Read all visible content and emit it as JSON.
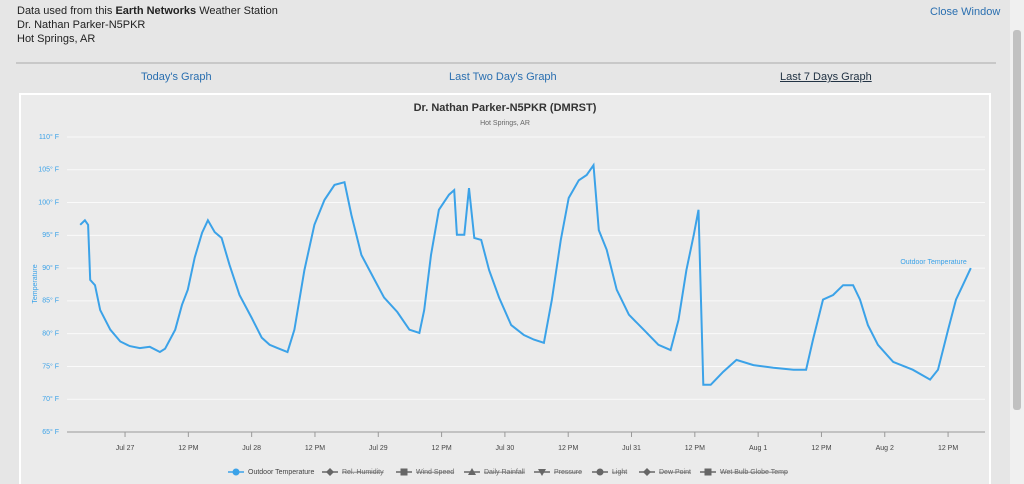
{
  "header": {
    "source_prefix": "Data used from this",
    "source_network": "Earth Networks",
    "source_suffix": "Weather Station",
    "station": "Dr. Nathan Parker-N5PKR",
    "location": "Hot Springs, AR",
    "close": "Close Window"
  },
  "tabs": [
    "Today's Graph",
    "Last Two Day's Graph",
    "Last 7 Days Graph"
  ],
  "chart_data": {
    "type": "line",
    "title": "Dr. Nathan Parker-N5PKR (DMRST)",
    "subtitle": "Hot Springs, AR",
    "y_label": "Temperature",
    "x": [
      -8.5,
      -7.6,
      -7,
      -6.6,
      -5.7,
      -4.7,
      -2.8,
      -0.9,
      0.9,
      2.8,
      4.7,
      6.6,
      7.6,
      9.5,
      10.8,
      11.9,
      13.2,
      14.6,
      15.7,
      17,
      18.3,
      19.8,
      21.7,
      24,
      25.9,
      27.4,
      28.9,
      30.8,
      32.1,
      34,
      35.9,
      37.8,
      39.7,
      41.6,
      42.9,
      44.8,
      47.3,
      49.1,
      51.6,
      53.9,
      55.8,
      56.7,
      58,
      59.5,
      61.4,
      62.4,
      62.9,
      64.3,
      65.2,
      66.2,
      67.5,
      69,
      70.9,
      73.2,
      75.6,
      77.5,
      79.4,
      80.9,
      82.6,
      84.1,
      86,
      87.5,
      88.8,
      89.8,
      91.3,
      93.2,
      95.5,
      98.3,
      101.1,
      103.4,
      104.9,
      106.4,
      107.8,
      108.7,
      109.6,
      111,
      113.4,
      115.9,
      119.1,
      122.9,
      126.7,
      129.1,
      130.4,
      132.3,
      134.2,
      136.1,
      138,
      139.3,
      140.8,
      142.7,
      145.6,
      149.3,
      152.6,
      154.1,
      156,
      157.5,
      158.8,
      160.3
    ],
    "series": [
      {
        "name": "Outdoor Temperature",
        "color": "#3ba2e8",
        "values": [
          96.6,
          97.3,
          96.6,
          88.2,
          87.4,
          83.6,
          80.6,
          78.8,
          78.1,
          77.8,
          78,
          77.2,
          77.7,
          80.6,
          84.4,
          86.7,
          91.6,
          95.4,
          97.3,
          95.5,
          94.6,
          90.5,
          85.9,
          82.4,
          79.4,
          78.3,
          77.8,
          77.2,
          80.6,
          89.7,
          96.6,
          100.4,
          102.7,
          103.1,
          98.1,
          92,
          88.2,
          85.5,
          83.3,
          80.6,
          80.1,
          83.6,
          92,
          98.9,
          101.2,
          101.9,
          95.1,
          95.1,
          102.2,
          94.6,
          94.3,
          89.7,
          85.5,
          81.3,
          79.8,
          79.1,
          78.6,
          85.2,
          94.3,
          100.7,
          103.4,
          104.2,
          105.7,
          95.8,
          92.8,
          86.7,
          82.9,
          80.6,
          78.3,
          77.5,
          82.1,
          89.7,
          95.1,
          98.9,
          72.2,
          72.2,
          74.2,
          76,
          75.2,
          74.8,
          74.5,
          74.5,
          79.1,
          85.2,
          85.9,
          87.4,
          87.4,
          85.2,
          81.3,
          78.3,
          75.7,
          74.5,
          73,
          74.5,
          80.6,
          85.2,
          87.4,
          90
        ]
      }
    ],
    "hidden_series": [
      "Rel. Humidity",
      "Wind Speed",
      "Daily Rainfall",
      "Pressure",
      "Light",
      "Dew Point",
      "Wet Bulb Globe Temp"
    ],
    "xlim": [
      -11,
      163
    ],
    "xticks": [
      {
        "value": 0,
        "label": "Jul 27"
      },
      {
        "value": 12,
        "label": "12 PM"
      },
      {
        "value": 24,
        "label": "Jul 28"
      },
      {
        "value": 36,
        "label": "12 PM"
      },
      {
        "value": 48,
        "label": "Jul 29"
      },
      {
        "value": 60,
        "label": "12 PM"
      },
      {
        "value": 72,
        "label": "Jul 30"
      },
      {
        "value": 84,
        "label": "12 PM"
      },
      {
        "value": 96,
        "label": "Jul 31"
      },
      {
        "value": 108,
        "label": "12 PM"
      },
      {
        "value": 120,
        "label": "Aug 1"
      },
      {
        "value": 132,
        "label": "12 PM"
      },
      {
        "value": 144,
        "label": "Aug 2"
      },
      {
        "value": 156,
        "label": "12 PM"
      }
    ],
    "ylim": [
      65,
      110
    ],
    "yticks": [
      {
        "value": 65,
        "label": "65° F"
      },
      {
        "value": 70,
        "label": "70° F"
      },
      {
        "value": 75,
        "label": "75° F"
      },
      {
        "value": 80,
        "label": "80° F"
      },
      {
        "value": 85,
        "label": "85° F"
      },
      {
        "value": 90,
        "label": "90° F"
      },
      {
        "value": 95,
        "label": "95° F"
      },
      {
        "value": 100,
        "label": "100° F"
      },
      {
        "value": 105,
        "label": "105° F"
      },
      {
        "value": 110,
        "label": "110° F"
      }
    ],
    "grid": true
  }
}
